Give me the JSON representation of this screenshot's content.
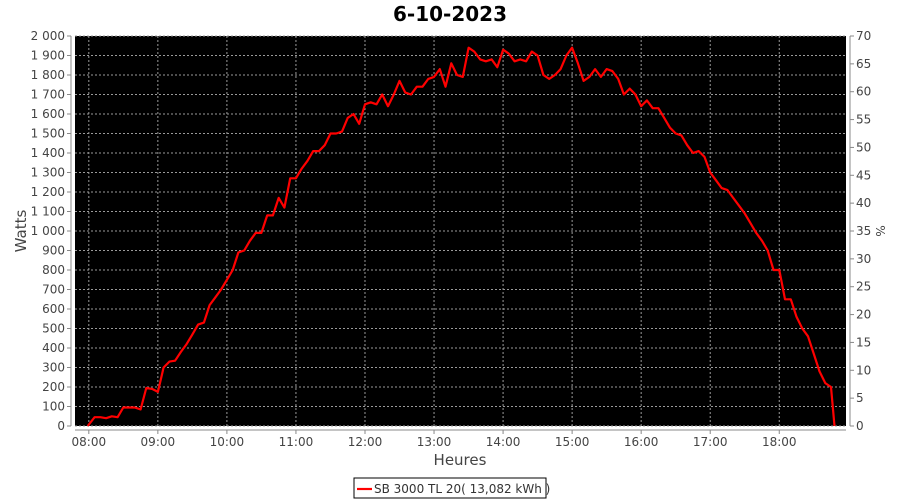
{
  "chart_data": {
    "type": "line",
    "title": "6-10-2023",
    "xlabel": "Heures",
    "ylabel": "Watts",
    "y2label": "%",
    "xlim": [
      "07:48",
      "18:58"
    ],
    "ylim": [
      0,
      2000
    ],
    "y2lim": [
      0,
      70
    ],
    "x_ticks": [
      "08:00",
      "09:00",
      "10:00",
      "11:00",
      "12:00",
      "13:00",
      "14:00",
      "15:00",
      "16:00",
      "17:00",
      "18:00"
    ],
    "y_ticks": [
      "0",
      "100",
      "200",
      "300",
      "400",
      "500",
      "600",
      "700",
      "800",
      "900",
      "1 000",
      "1 100",
      "1 200",
      "1 300",
      "1 400",
      "1 500",
      "1 600",
      "1 700",
      "1 800",
      "1 900",
      "2 000"
    ],
    "y2_ticks": [
      "0",
      "5",
      "10",
      "15",
      "20",
      "25",
      "30",
      "35",
      "40",
      "45",
      "50",
      "55",
      "60",
      "65",
      "70"
    ],
    "grid": true,
    "legend_position": "bottom",
    "colors": {
      "plot_background": "#000000",
      "grid": "#9a9a9a",
      "series": "#ff0000"
    },
    "series": [
      {
        "name": "SB 3000 TL 20( 13,082 kWh )",
        "x": [
          "07:59",
          "08:05",
          "08:10",
          "08:15",
          "08:20",
          "08:25",
          "08:30",
          "08:35",
          "08:40",
          "08:45",
          "08:50",
          "08:55",
          "09:00",
          "09:05",
          "09:10",
          "09:15",
          "09:20",
          "09:25",
          "09:30",
          "09:35",
          "09:40",
          "09:45",
          "09:50",
          "09:55",
          "10:00",
          "10:05",
          "10:10",
          "10:15",
          "10:20",
          "10:25",
          "10:30",
          "10:35",
          "10:40",
          "10:45",
          "10:50",
          "10:55",
          "11:00",
          "11:05",
          "11:10",
          "11:15",
          "11:20",
          "11:25",
          "11:30",
          "11:35",
          "11:40",
          "11:45",
          "11:50",
          "11:55",
          "12:00",
          "12:05",
          "12:10",
          "12:15",
          "12:20",
          "12:25",
          "12:30",
          "12:35",
          "12:40",
          "12:45",
          "12:50",
          "12:55",
          "13:00",
          "13:05",
          "13:10",
          "13:15",
          "13:20",
          "13:25",
          "13:30",
          "13:35",
          "13:40",
          "13:45",
          "13:50",
          "13:55",
          "14:00",
          "14:05",
          "14:10",
          "14:15",
          "14:20",
          "14:25",
          "14:30",
          "14:35",
          "14:40",
          "14:45",
          "14:50",
          "14:55",
          "15:00",
          "15:05",
          "15:10",
          "15:15",
          "15:20",
          "15:25",
          "15:30",
          "15:35",
          "15:40",
          "15:45",
          "15:50",
          "15:55",
          "16:00",
          "16:05",
          "16:10",
          "16:15",
          "16:20",
          "16:25",
          "16:30",
          "16:35",
          "16:40",
          "16:45",
          "16:50",
          "16:55",
          "17:00",
          "17:05",
          "17:10",
          "17:15",
          "17:20",
          "17:25",
          "17:30",
          "17:35",
          "17:40",
          "17:45",
          "17:50",
          "17:55",
          "18:00",
          "18:05",
          "18:10",
          "18:15",
          "18:20",
          "18:25",
          "18:30",
          "18:35",
          "18:40",
          "18:45",
          "18:48"
        ],
        "values": [
          0,
          45,
          45,
          40,
          50,
          45,
          95,
          95,
          95,
          85,
          195,
          190,
          175,
          300,
          330,
          335,
          380,
          420,
          470,
          520,
          530,
          620,
          660,
          700,
          750,
          800,
          890,
          900,
          950,
          990,
          990,
          1080,
          1080,
          1170,
          1120,
          1270,
          1270,
          1320,
          1360,
          1410,
          1410,
          1440,
          1500,
          1500,
          1510,
          1580,
          1600,
          1550,
          1650,
          1660,
          1650,
          1700,
          1640,
          1700,
          1770,
          1710,
          1700,
          1740,
          1740,
          1780,
          1790,
          1830,
          1740,
          1860,
          1800,
          1790,
          1940,
          1920,
          1880,
          1870,
          1880,
          1840,
          1930,
          1910,
          1870,
          1880,
          1870,
          1920,
          1900,
          1800,
          1780,
          1800,
          1830,
          1900,
          1940,
          1860,
          1770,
          1790,
          1830,
          1790,
          1830,
          1820,
          1780,
          1700,
          1730,
          1700,
          1640,
          1670,
          1630,
          1630,
          1580,
          1530,
          1500,
          1490,
          1440,
          1400,
          1410,
          1380,
          1300,
          1260,
          1220,
          1210,
          1170,
          1130,
          1090,
          1040,
          990,
          950,
          900,
          800,
          800,
          650,
          650,
          560,
          500,
          460,
          370,
          280,
          220,
          200,
          0
        ]
      }
    ]
  }
}
